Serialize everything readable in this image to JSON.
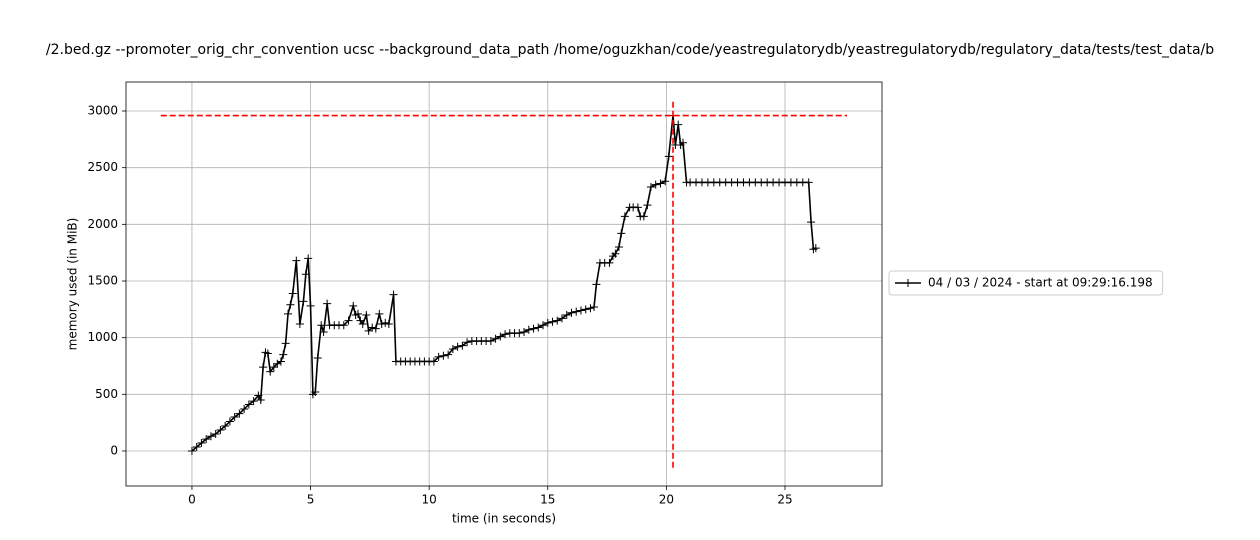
{
  "chart_data": {
    "type": "line",
    "title": "/2.bed.gz --promoter_orig_chr_convention ucsc --background_data_path /home/oguzkhan/code/yeastregulatorydb/yeastregulatorydb/regulatory_data/tests/test_data/b",
    "x_label": "time (in seconds)",
    "y_label": "memory used (in MiB)",
    "x": [
      0,
      0.2,
      0.4,
      0.6,
      0.8,
      1.0,
      1.2,
      1.4,
      1.6,
      1.8,
      2.0,
      2.2,
      2.4,
      2.6,
      2.8,
      2.9,
      3.0,
      3.1,
      3.2,
      3.3,
      3.45,
      3.6,
      3.75,
      3.85,
      3.95,
      4.05,
      4.15,
      4.25,
      4.4,
      4.55,
      4.7,
      4.8,
      4.9,
      5.0,
      5.1,
      5.2,
      5.3,
      5.45,
      5.55,
      5.7,
      5.8,
      6.0,
      6.2,
      6.4,
      6.6,
      6.8,
      6.9,
      7.0,
      7.1,
      7.2,
      7.35,
      7.45,
      7.6,
      7.75,
      7.9,
      8.0,
      8.15,
      8.3,
      8.5,
      8.6,
      8.8,
      9.0,
      9.2,
      9.4,
      9.6,
      9.8,
      10.0,
      10.2,
      10.4,
      10.6,
      10.8,
      11.0,
      11.2,
      11.4,
      11.6,
      11.8,
      12.0,
      12.2,
      12.4,
      12.6,
      12.8,
      13.0,
      13.2,
      13.4,
      13.6,
      13.8,
      14.0,
      14.2,
      14.4,
      14.6,
      14.8,
      15.0,
      15.2,
      15.4,
      15.6,
      15.8,
      16.0,
      16.2,
      16.4,
      16.6,
      16.8,
      16.95,
      17.05,
      17.2,
      17.4,
      17.6,
      17.75,
      17.85,
      18.0,
      18.1,
      18.25,
      18.45,
      18.6,
      18.8,
      18.9,
      19.05,
      19.2,
      19.35,
      19.55,
      19.75,
      19.95,
      20.1,
      20.28,
      20.38,
      20.5,
      20.6,
      20.7,
      20.85,
      21.0,
      21.25,
      21.5,
      21.75,
      22.0,
      22.25,
      22.5,
      22.75,
      23.0,
      23.25,
      23.5,
      23.75,
      24.0,
      24.25,
      24.5,
      24.75,
      25.0,
      25.25,
      25.5,
      25.75,
      26.0,
      26.1,
      26.2,
      26.3
    ],
    "series": [
      {
        "name": "04 / 03 / 2024 - start at 09:29:16.198",
        "color": "#000000",
        "values": [
          0,
          35,
          70,
          105,
          130,
          150,
          185,
          220,
          260,
          300,
          330,
          370,
          410,
          440,
          490,
          450,
          740,
          870,
          860,
          700,
          740,
          770,
          790,
          850,
          950,
          1210,
          1290,
          1390,
          1680,
          1120,
          1320,
          1560,
          1700,
          1280,
          500,
          520,
          820,
          1110,
          1050,
          1300,
          1110,
          1110,
          1110,
          1110,
          1150,
          1280,
          1200,
          1210,
          1150,
          1120,
          1200,
          1060,
          1090,
          1080,
          1210,
          1120,
          1130,
          1120,
          1380,
          790,
          790,
          790,
          790,
          790,
          790,
          790,
          790,
          790,
          830,
          840,
          850,
          900,
          920,
          930,
          960,
          970,
          970,
          970,
          970,
          970,
          990,
          1010,
          1030,
          1040,
          1040,
          1040,
          1050,
          1070,
          1080,
          1090,
          1110,
          1130,
          1140,
          1150,
          1170,
          1200,
          1220,
          1230,
          1240,
          1250,
          1260,
          1270,
          1470,
          1660,
          1660,
          1660,
          1720,
          1740,
          1800,
          1920,
          2070,
          2150,
          2150,
          2150,
          2070,
          2070,
          2170,
          2330,
          2350,
          2360,
          2380,
          2600,
          2960,
          2700,
          2880,
          2700,
          2720,
          2370,
          2370,
          2370,
          2370,
          2370,
          2370,
          2370,
          2370,
          2370,
          2370,
          2370,
          2370,
          2370,
          2370,
          2370,
          2370,
          2370,
          2370,
          2370,
          2370,
          2370,
          2370,
          2020,
          1780,
          1790
        ]
      }
    ],
    "max_memory": {
      "x": 20.28,
      "y": 2960,
      "color": "#ff0000"
    },
    "xlim": [
      -2.78,
      29.09
    ],
    "ylim": [
      -309,
      3256
    ],
    "xticks": [
      0,
      5,
      10,
      15,
      20,
      25
    ],
    "yticks": [
      0,
      500,
      1000,
      1500,
      2000,
      2500,
      3000
    ],
    "grid": true,
    "legend": "outside right"
  }
}
